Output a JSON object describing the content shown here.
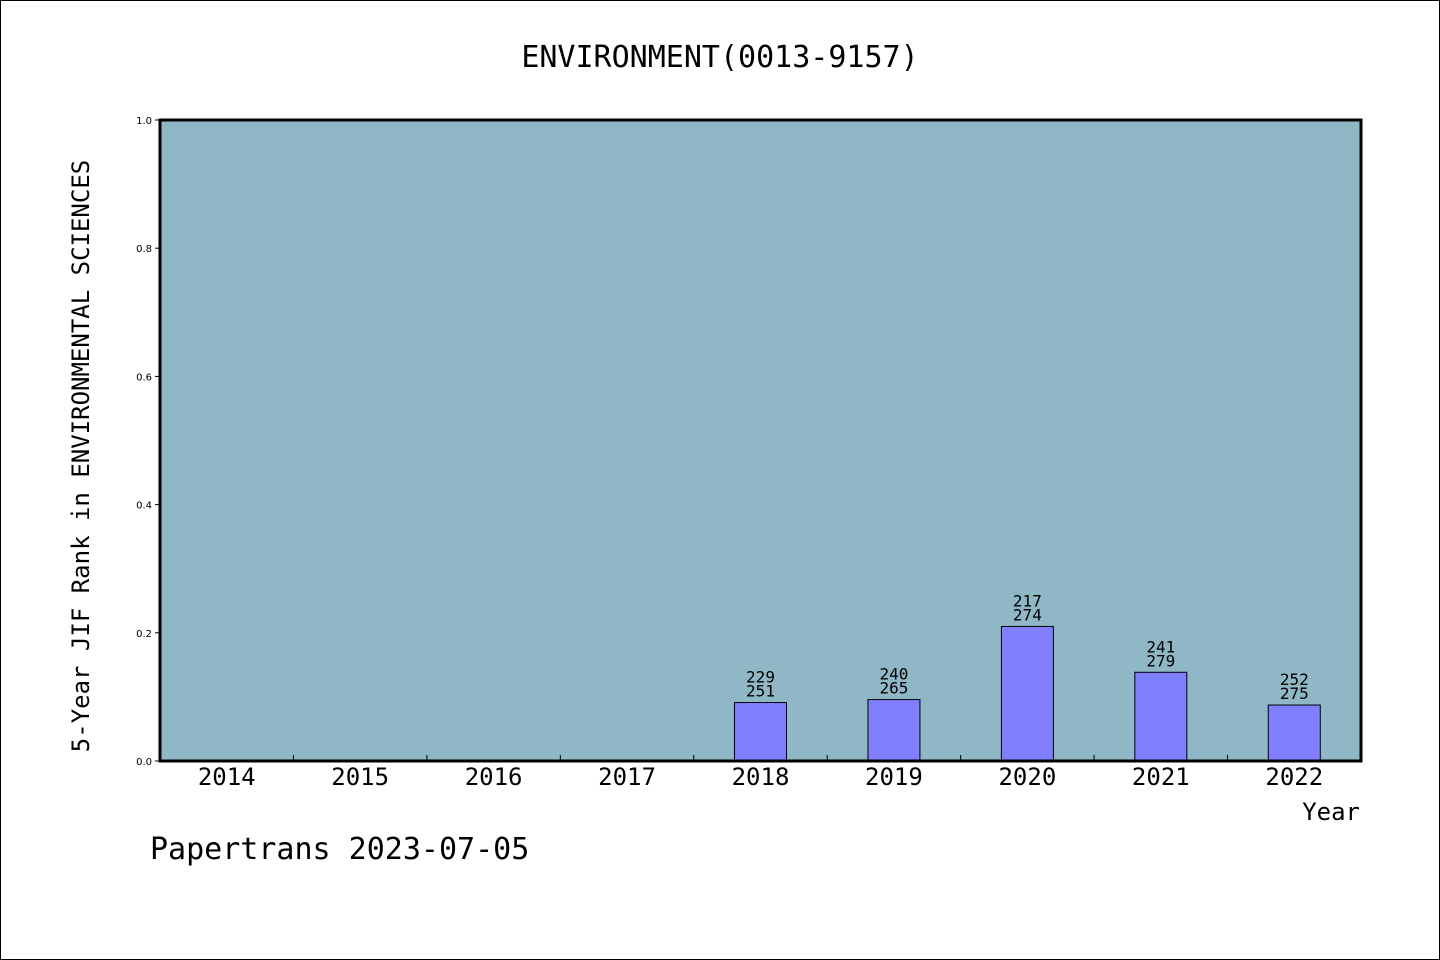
{
  "chart_data": {
    "type": "bar",
    "title": "ENVIRONMENT(0013-9157)",
    "xlabel": "Year",
    "ylabel": "5-Year JIF Rank in ENVIRONMENTAL SCIENCES",
    "ylim": [
      0,
      1.0
    ],
    "yticks": [
      "0.0",
      "0.2",
      "0.4",
      "0.6",
      "0.8",
      "1.0"
    ],
    "categories": [
      "2014",
      "2015",
      "2016",
      "2017",
      "2018",
      "2019",
      "2020",
      "2021",
      "2022"
    ],
    "values": [
      null,
      null,
      null,
      null,
      0.0912,
      0.0958,
      0.2099,
      0.1384,
      0.0873
    ],
    "labels_rank": [
      null,
      null,
      null,
      null,
      "229",
      "240",
      "217",
      "241",
      "252"
    ],
    "labels_total": [
      null,
      null,
      null,
      null,
      "251",
      "265",
      "274",
      "279",
      "275"
    ],
    "grid": false,
    "colors": {
      "plot_background": "#8fb7c5",
      "bar_fill": "#8080ff",
      "bar_stroke": "#000000"
    }
  },
  "footer": "Papertrans 2023-07-05"
}
